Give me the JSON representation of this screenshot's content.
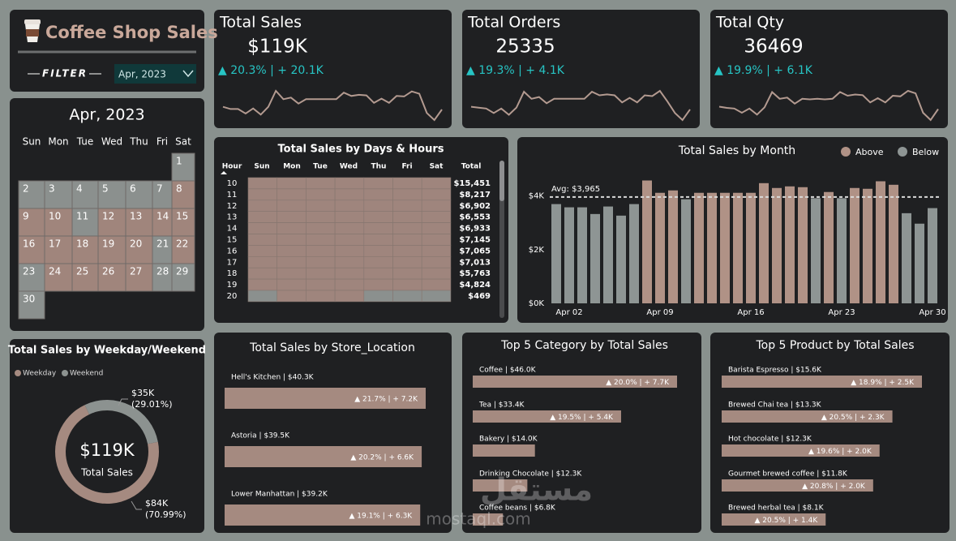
{
  "header": {
    "title": "Coffee Shop Sales",
    "filter_label": "FILTER",
    "filter_value": "Apr, 2023"
  },
  "kpis": [
    {
      "title": "Total Sales",
      "value": "$119K",
      "change": "▲ 20.3% | + 20.1K",
      "trend": [
        3700,
        3580,
        3580,
        3330,
        3610,
        3270,
        3700,
        4580,
        4120,
        4210,
        3880,
        4120,
        4120,
        4120,
        4120,
        4120,
        4480,
        4300,
        4360,
        4330,
        3920,
        4150,
        3920,
        4300,
        4270,
        4550,
        4420,
        3360,
        2970,
        3550
      ]
    },
    {
      "title": "Total Orders",
      "value": "25335",
      "change": "▲ 19.3% | + 4.1K",
      "trend": [
        790,
        780,
        770,
        720,
        770,
        700,
        780,
        960,
        880,
        900,
        830,
        880,
        880,
        880,
        880,
        880,
        960,
        920,
        930,
        920,
        840,
        890,
        840,
        920,
        910,
        970,
        850,
        720,
        640,
        760
      ]
    },
    {
      "title": "Total Qty",
      "value": "36469",
      "change": "▲ 19.9% | + 6.1K",
      "trend": [
        1140,
        1120,
        1110,
        1040,
        1110,
        1010,
        1130,
        1380,
        1270,
        1290,
        1190,
        1270,
        1260,
        1270,
        1260,
        1270,
        1380,
        1320,
        1340,
        1330,
        1210,
        1280,
        1210,
        1320,
        1310,
        1400,
        1360,
        1040,
        920,
        1100
      ]
    }
  ],
  "calendar": {
    "title": "Apr, 2023",
    "weekdays": [
      "Sun",
      "Mon",
      "Tue",
      "Wed",
      "Thu",
      "Fri",
      "Sat"
    ],
    "weeks": [
      [
        null,
        null,
        null,
        null,
        null,
        null,
        1
      ],
      [
        2,
        3,
        4,
        5,
        6,
        7,
        8
      ],
      [
        9,
        10,
        11,
        12,
        13,
        14,
        15
      ],
      [
        16,
        17,
        18,
        19,
        20,
        21,
        22
      ],
      [
        23,
        24,
        25,
        26,
        27,
        28,
        29
      ],
      [
        30
      ]
    ]
  },
  "heatmap": {
    "title": "Total Sales by Days & Hours",
    "columns": [
      "Hour",
      "Sun",
      "Mon",
      "Tue",
      "Wed",
      "Thu",
      "Fri",
      "Sat",
      "Total"
    ],
    "rows": [
      {
        "hour": 10,
        "total": "$15,451"
      },
      {
        "hour": 11,
        "total": "$8,217"
      },
      {
        "hour": 12,
        "total": "$6,902"
      },
      {
        "hour": 13,
        "total": "$6,553"
      },
      {
        "hour": 14,
        "total": "$6,933"
      },
      {
        "hour": 15,
        "total": "$7,145"
      },
      {
        "hour": 16,
        "total": "$7,065"
      },
      {
        "hour": 17,
        "total": "$7,013"
      },
      {
        "hour": 18,
        "total": "$5,763"
      },
      {
        "hour": 19,
        "total": "$4,824"
      },
      {
        "hour": 20,
        "total": "$469"
      }
    ]
  },
  "watermark": "mostaql.com",
  "chart_data": [
    {
      "type": "bar",
      "title": "Total Sales by Month",
      "categories": [
        null,
        "Apr 02",
        null,
        null,
        null,
        null,
        null,
        null,
        "Apr 09",
        null,
        null,
        null,
        null,
        null,
        null,
        "Apr 16",
        null,
        null,
        null,
        null,
        null,
        null,
        "Apr 23",
        null,
        null,
        null,
        null,
        null,
        null,
        "Apr 30"
      ],
      "values": [
        3700,
        3580,
        3580,
        3330,
        3610,
        3270,
        3700,
        4580,
        4120,
        4210,
        3880,
        4120,
        4120,
        4120,
        4120,
        4120,
        4480,
        4300,
        4360,
        4330,
        3920,
        4150,
        3920,
        4300,
        4270,
        4550,
        4420,
        3360,
        2970,
        3550
      ],
      "ylim": [
        0,
        5200
      ],
      "yticks": [
        {
          "value": 0,
          "label": "$0K"
        },
        {
          "value": 2000,
          "label": "$2K"
        },
        {
          "value": 4000,
          "label": "$4K"
        }
      ],
      "average": 3965,
      "average_label": "Avg: $3,965",
      "legend": [
        {
          "name": "Above",
          "color": "#b09286"
        },
        {
          "name": "Below",
          "color": "#8e9594"
        }
      ]
    },
    {
      "type": "pie",
      "donut": true,
      "title": "Total Sales by Weekday/Weekend",
      "categories": [
        "Weekday",
        "Weekend"
      ],
      "values": [
        70.99,
        29.01
      ],
      "value_labels": [
        "(70.99%)",
        "(29.01%)"
      ],
      "amount_labels": [
        "$84K",
        "$35K"
      ],
      "colors": [
        "#a58a80",
        "#8c9290"
      ],
      "center_value": "$119K",
      "center_label": "Total Sales"
    },
    {
      "type": "hbar",
      "title": "Total Sales by Store_Location",
      "categories": [
        "Hell's Kitchen | $40.3K",
        "Astoria | $39.5K",
        "Lower Manhattan | $39.2K"
      ],
      "values": [
        40.3,
        39.5,
        39.2
      ],
      "change_labels": [
        "▲ 21.7% | + 7.2K",
        "▲ 20.2% | + 6.6K",
        "▲ 19.1% | + 6.3K"
      ],
      "color": "#a58a80"
    },
    {
      "type": "hbar",
      "title": "Top 5 Category by Total Sales",
      "categories": [
        "Coffee | $46.0K",
        "Tea | $33.4K",
        "Bakery | $14.0K",
        "Drinking Chocolate | $12.3K",
        "Coffee beans | $6.8K"
      ],
      "values": [
        46.0,
        33.4,
        14.0,
        12.3,
        6.8
      ],
      "change_labels": [
        "▲ 20.0% | + 7.7K",
        "▲ 19.5% | + 5.4K",
        null,
        null,
        null
      ],
      "color": "#a58a80"
    },
    {
      "type": "hbar",
      "title": "Top 5 Product by Total Sales",
      "categories": [
        "Barista Espresso | $15.6K",
        "Brewed Chai tea | $13.3K",
        "Hot chocolate | $12.3K",
        "Gourmet brewed coffee | $11.8K",
        "Brewed herbal tea | $8.1K"
      ],
      "values": [
        15.6,
        13.3,
        12.3,
        11.8,
        8.1
      ],
      "change_labels": [
        "▲ 18.9% | + 2.5K",
        "▲ 20.5% | + 2.3K",
        "▲ 19.6% | + 2.0K",
        "▲ 20.8% | + 2.0K",
        "▲ 20.5% | + 1.4K"
      ],
      "color": "#a58a80"
    }
  ]
}
